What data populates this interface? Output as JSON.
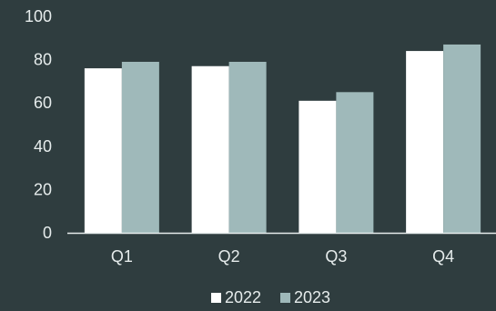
{
  "chart_data": {
    "type": "bar",
    "categories": [
      "Q1",
      "Q2",
      "Q3",
      "Q4"
    ],
    "series": [
      {
        "name": "2022",
        "values": [
          76,
          77,
          61,
          84
        ]
      },
      {
        "name": "2023",
        "values": [
          79,
          79,
          65,
          87
        ]
      }
    ],
    "ylim": [
      0,
      100
    ],
    "yticks": [
      "0",
      "20",
      "40",
      "60",
      "80",
      "100"
    ],
    "grid": false,
    "legend_position": "bottom-center",
    "colors": {
      "background": "#2f3d3f",
      "series": [
        "#ffffff",
        "#9fb9ba"
      ],
      "axis": "#e6ecec",
      "text": "#e6ecec"
    }
  }
}
